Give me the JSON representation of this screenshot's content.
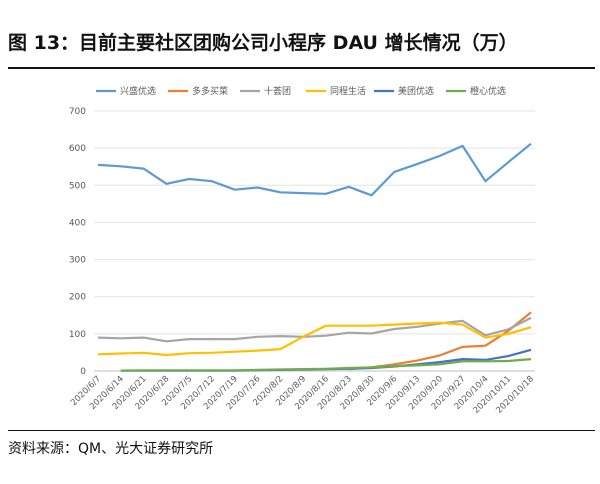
{
  "title": "图 13：目前主要社区团购公司小程序 DAU 增长情况（万）",
  "source": "资料来源：QM、光大证券研究所",
  "chart_data": {
    "type": "line",
    "ylim": [
      0,
      700
    ],
    "yticks": [
      0,
      100,
      200,
      300,
      400,
      500,
      600,
      700
    ],
    "grid": true,
    "legend": "top",
    "categories": [
      "2020/6/7",
      "2020/6/14",
      "2020/6/21",
      "2020/6/28",
      "2020/7/5",
      "2020/7/12",
      "2020/7/19",
      "2020/7/26",
      "2020/8/2",
      "2020/8/9",
      "2020/8/16",
      "2020/8/23",
      "2020/8/30",
      "2020/9/6",
      "2020/9/13",
      "2020/9/20",
      "2020/9/27",
      "2020/10/4",
      "2020/10/11",
      "2020/10/18"
    ],
    "series": [
      {
        "name": "兴盛优选",
        "color": "#5b9bd5",
        "values": [
          555,
          551,
          545,
          504,
          517,
          511,
          488,
          494,
          481,
          479,
          477,
          496,
          473,
          536,
          557,
          579,
          606,
          511,
          562,
          612
        ]
      },
      {
        "name": "多多买菜",
        "color": "#ed7d31",
        "values": [
          null,
          null,
          null,
          null,
          null,
          null,
          null,
          null,
          null,
          null,
          null,
          5,
          10,
          18,
          28,
          42,
          65,
          68,
          108,
          158
        ]
      },
      {
        "name": "十荟团",
        "color": "#a5a5a5",
        "values": [
          90,
          88,
          90,
          80,
          86,
          86,
          86,
          92,
          94,
          92,
          95,
          103,
          101,
          113,
          119,
          128,
          135,
          96,
          112,
          143
        ]
      },
      {
        "name": "同程生活",
        "color": "#ffc000",
        "values": [
          45,
          47,
          49,
          43,
          48,
          49,
          52,
          55,
          59,
          92,
          122,
          122,
          122,
          125,
          128,
          130,
          125,
          90,
          100,
          118
        ]
      },
      {
        "name": "美团优选",
        "color": "#4472c4",
        "values": [
          null,
          1,
          1,
          1,
          1,
          1,
          1,
          2,
          3,
          4,
          5,
          6,
          8,
          12,
          18,
          24,
          32,
          30,
          40,
          57
        ]
      },
      {
        "name": "橙心优选",
        "color": "#70ad47",
        "values": [
          null,
          1,
          2,
          2,
          2,
          2,
          2,
          3,
          4,
          5,
          6,
          8,
          10,
          13,
          15,
          18,
          26,
          26,
          27,
          32
        ]
      }
    ]
  }
}
